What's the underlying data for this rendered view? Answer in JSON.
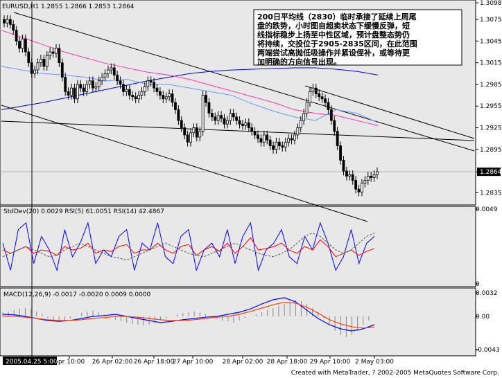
{
  "chart_data": {
    "type": "candlestick",
    "main_panel": {
      "header": "EURUSD,H1  1.2855 1.2866 1.2853 1.2864",
      "ylim": [
        1.282,
        1.31
      ],
      "yticks": [
        "1.3098",
        "1.3075",
        "1.3045",
        "1.3015",
        "1.2985",
        "1.2955",
        "1.2925",
        "1.2895",
        "1.2864",
        "1.2835"
      ],
      "ytick_values": [
        1.3098,
        1.3075,
        1.3045,
        1.3015,
        1.2985,
        1.2955,
        1.2925,
        1.2895,
        1.2864,
        1.2835
      ],
      "current_price": "1.2864",
      "annotation": "200日平均线（2830）临时承接了延续上周尾盘的跌势，小时图自超卖状态下缓慢反弹，短线指标稳步上扬至中性区域，预计盘整态势仍将持续，交投位于2905-2835区间，在此范围两端尝试高抛低吸操作并紧设侄补，或等待更加明确的方向信号出现。",
      "annotation_lines": [
        "200日平均线（2830）临时承接了延续上周尾",
        "盘的跌势，小时图自超卖状态下缓慢反弹，短",
        "线指标稳步上扬至中性区域，预计盘整态势仍",
        "将持续，交投位于2905-2835区间，在此范围",
        "两端尝试高抛低吸操作并紧设侄补，或等待更",
        "加明确的方向信号出现。"
      ],
      "close_series": [
        1.307,
        1.3075,
        1.3068,
        1.306,
        1.3045,
        1.3035,
        1.3048,
        1.303,
        1.3015,
        1.3,
        1.3005,
        1.3015,
        1.302,
        1.301,
        1.3025,
        1.303,
        1.3028,
        1.3035,
        1.3015,
        1.2995,
        1.2975,
        1.297,
        1.298,
        1.2965,
        1.2985,
        1.298,
        1.2975,
        1.2985,
        1.299,
        1.298,
        1.2982,
        1.299,
        1.2995,
        1.3,
        1.3005,
        1.3008,
        1.2998,
        1.299,
        1.2985,
        1.2975,
        1.2978,
        1.297,
        1.2968,
        1.2965,
        1.297,
        1.2975,
        1.2982,
        1.299,
        1.2988,
        1.298,
        1.2975,
        1.297,
        1.2965,
        1.2968,
        1.2972,
        1.296,
        1.295,
        1.2935,
        1.2925,
        1.2915,
        1.2905,
        1.2918,
        1.2925,
        1.2912,
        1.292,
        1.297,
        1.296,
        1.2945,
        1.294,
        1.2935,
        1.2942,
        1.2938,
        1.293,
        1.2935,
        1.2945,
        1.294,
        1.2935,
        1.293,
        1.2928,
        1.2932,
        1.2925,
        1.292,
        1.2915,
        1.291,
        1.2905,
        1.2915,
        1.2908,
        1.29,
        1.2895,
        1.2905,
        1.29,
        1.2898,
        1.2905,
        1.291,
        1.2908,
        1.2915,
        1.2925,
        1.2935,
        1.2945,
        1.296,
        1.2975,
        1.298,
        1.2972,
        1.2968,
        1.2965,
        1.296,
        1.295,
        1.2935,
        1.292,
        1.29,
        1.288,
        1.2865,
        1.2858,
        1.286,
        1.2852,
        1.284,
        1.2836,
        1.2848,
        1.2852,
        1.2858,
        1.2856,
        1.286,
        1.2864
      ],
      "moving_averages": [
        {
          "color": "#0000cc",
          "values": [
            1.295,
            1.2955,
            1.296,
            1.2966,
            1.2972,
            1.2978,
            1.2984,
            1.299,
            1.2995,
            1.3,
            1.3003,
            1.3005,
            1.3006,
            1.3007,
            1.3008,
            1.3008,
            1.3006,
            1.3003,
            1.2998
          ]
        },
        {
          "color": "#ff33aa",
          "values": [
            1.306,
            1.305,
            1.304,
            1.303,
            1.3022,
            1.3014,
            1.3008,
            1.3002,
            1.2998,
            1.2992,
            1.2984,
            1.2976,
            1.2968,
            1.296,
            1.295,
            1.2945,
            1.2942,
            1.2935,
            1.2928
          ]
        },
        {
          "color": "#6699ff",
          "values": [
            1.301,
            1.3005,
            1.3,
            1.2998,
            1.2995,
            1.299,
            1.2992,
            1.2985,
            1.2985,
            1.298,
            1.2975,
            1.297,
            1.2958,
            1.2948,
            1.294,
            1.2935,
            1.295,
            1.2945,
            1.2932
          ]
        }
      ]
    },
    "stddev_rsi_panel": {
      "header": "StdDev(20) 0.0029  RSI(5) 61.0051  RSI(14) 42.4867",
      "yticks": [
        "0.0049",
        "0"
      ],
      "series": [
        {
          "color": "#0000ff",
          "values": [
            0.6,
            0.2,
            0.8,
            0.9,
            0.3,
            0.7,
            0.5,
            0.2,
            0.8,
            0.4,
            0.6,
            0.9,
            0.3,
            0.5,
            0.4,
            0.7,
            0.8,
            0.2,
            0.6,
            0.5,
            0.9,
            0.4,
            0.3,
            0.7,
            0.8,
            0.2,
            0.5,
            0.6,
            0.4,
            0.8,
            0.3,
            0.7,
            0.9,
            0.2,
            0.5,
            0.6,
            0.8,
            0.4,
            0.3,
            0.7,
            0.5,
            0.9,
            0.6,
            0.2,
            0.4,
            0.8,
            0.3,
            0.6,
            0.7
          ]
        },
        {
          "color": "#ff0000",
          "values": [
            0.5,
            0.45,
            0.5,
            0.55,
            0.45,
            0.5,
            0.48,
            0.42,
            0.55,
            0.5,
            0.52,
            0.6,
            0.45,
            0.5,
            0.48,
            0.55,
            0.58,
            0.45,
            0.5,
            0.5,
            0.6,
            0.5,
            0.45,
            0.55,
            0.58,
            0.42,
            0.5,
            0.55,
            0.48,
            0.6,
            0.45,
            0.55,
            0.68,
            0.5,
            0.52,
            0.55,
            0.6,
            0.5,
            0.45,
            0.55,
            0.5,
            0.65,
            0.55,
            0.4,
            0.45,
            0.5,
            0.42,
            0.48,
            0.52
          ]
        },
        {
          "color": "#555555",
          "values": [
            0.4,
            0.45,
            0.5,
            0.55,
            0.5,
            0.45,
            0.4,
            0.42,
            0.5,
            0.55,
            0.6,
            0.55,
            0.5,
            0.45,
            0.4,
            0.38,
            0.35,
            0.4,
            0.45,
            0.5,
            0.55,
            0.6,
            0.55,
            0.5,
            0.45,
            0.42,
            0.4,
            0.45,
            0.5,
            0.55,
            0.6,
            0.55,
            0.5,
            0.45,
            0.42,
            0.4,
            0.45,
            0.5,
            0.6,
            0.7,
            0.75,
            0.7,
            0.6,
            0.5,
            0.45,
            0.5,
            0.6,
            0.7,
            0.75
          ]
        }
      ]
    },
    "macd_panel": {
      "header": "MACD(12,26,9) -0.0017 -0.0020 0.0009 0.0000",
      "yticks": [
        "0.0032",
        "0.00",
        "-0.0043"
      ],
      "histogram": [
        0.1,
        0.12,
        0.15,
        0.18,
        0.2,
        0.18,
        0.12,
        0.05,
        -0.05,
        -0.1,
        -0.12,
        -0.1,
        -0.05,
        0.02,
        0.08,
        0.12,
        0.14,
        0.1,
        0.05,
        -0.02,
        -0.08,
        -0.12,
        -0.15,
        -0.18,
        -0.2,
        -0.22,
        -0.2,
        -0.15,
        -0.1,
        -0.05,
        0.0,
        0.05,
        0.08,
        0.1,
        0.12,
        0.1,
        0.05,
        0.0,
        -0.05,
        -0.1,
        -0.12,
        -0.15,
        -0.1,
        -0.05,
        0.0,
        0.05,
        0.1,
        0.15,
        0.2,
        0.25,
        0.3,
        0.35,
        0.4,
        0.38,
        0.3,
        0.2,
        0.1,
        -0.05,
        -0.2,
        -0.35,
        -0.45,
        -0.5,
        -0.45,
        -0.35,
        -0.2,
        -0.1,
        0.0
      ],
      "macd_line": {
        "color": "#0000ff",
        "values": [
          0.05,
          0.04,
          0.0,
          -0.05,
          -0.1,
          -0.12,
          -0.1,
          -0.05,
          0.0,
          0.02,
          0.05,
          0.0,
          -0.05,
          -0.1,
          -0.15,
          -0.12,
          -0.08,
          -0.05,
          -0.02,
          0.0,
          0.05,
          0.1,
          0.18,
          0.3,
          0.4,
          0.45,
          0.35,
          0.15,
          -0.05,
          -0.2,
          -0.3,
          -0.35,
          -0.3,
          -0.2
        ]
      },
      "signal_line": {
        "color": "#ff4400",
        "values": [
          0.0,
          0.0,
          -0.02,
          -0.05,
          -0.08,
          -0.1,
          -0.1,
          -0.08,
          -0.05,
          -0.03,
          0.0,
          0.0,
          -0.02,
          -0.05,
          -0.08,
          -0.1,
          -0.1,
          -0.08,
          -0.05,
          -0.02,
          0.0,
          0.05,
          0.12,
          0.2,
          0.28,
          0.34,
          0.32,
          0.22,
          0.08,
          -0.08,
          -0.18,
          -0.25,
          -0.28,
          -0.26
        ]
      }
    },
    "x_labels": [
      "2005.04.25 5:00",
      "Apr 10:00",
      "26 Apr 02:00",
      "26 Apr 18:00",
      "27 Apr 10:00",
      "28 Apr 02:00",
      "28 Apr 18:00",
      "29 Apr 10:00",
      "2 May 03:00"
    ],
    "footer": "Created with MetaTrader, ? 2002-2005 MetaQuotes Software Corp."
  }
}
